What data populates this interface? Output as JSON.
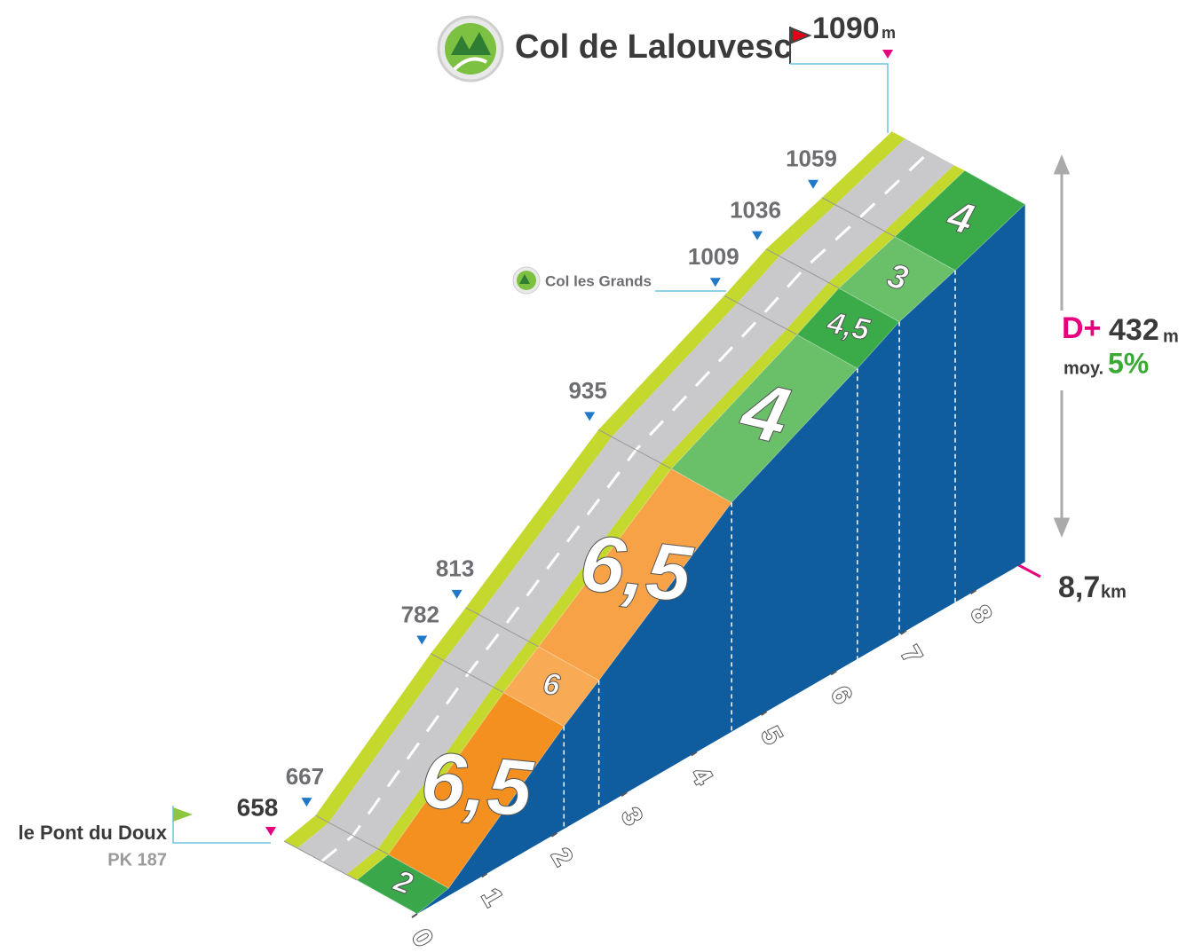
{
  "summit": {
    "name": "Col de Lalouvesc",
    "altitude": 1090,
    "unit": "m"
  },
  "start": {
    "name": "le Pont du Doux",
    "pk": "PK 187",
    "altitude": 658
  },
  "pass": {
    "name": "Col les Grands"
  },
  "altitudes": [
    667,
    782,
    813,
    935,
    1009,
    1036,
    1059
  ],
  "gradients": [
    "2",
    "6,5",
    "6",
    "6,5",
    "4",
    "4,5",
    "3",
    "4"
  ],
  "km_ticks": [
    "0",
    "1",
    "2",
    "3",
    "4",
    "5",
    "6",
    "7",
    "8"
  ],
  "distance": {
    "value": "8,7",
    "unit": "km"
  },
  "elevation_gain": {
    "label": "D+",
    "value": "432",
    "unit": "m"
  },
  "average": {
    "label": "moy.",
    "value": "5%"
  }
}
